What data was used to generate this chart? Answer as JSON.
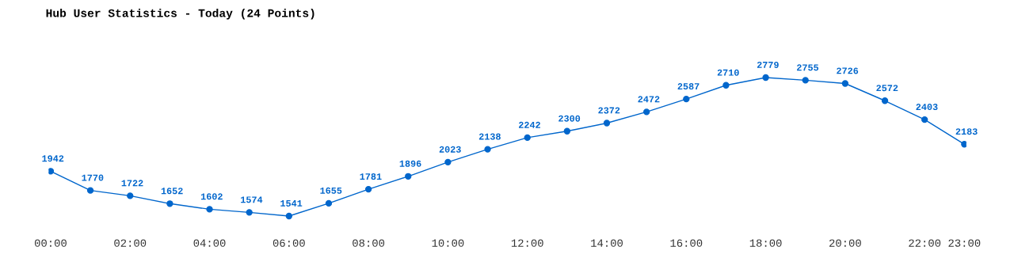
{
  "chart_data": {
    "type": "line",
    "title": "Hub User Statistics - Today (24 Points)",
    "categories": [
      "00:00",
      null,
      "02:00",
      null,
      "04:00",
      null,
      "06:00",
      null,
      "08:00",
      null,
      "10:00",
      null,
      "12:00",
      null,
      "14:00",
      null,
      "16:00",
      null,
      "18:00",
      null,
      "20:00",
      null,
      "22:00",
      "23:00"
    ],
    "series": [
      {
        "color": "#0066cc",
        "values": [
          1942,
          1770,
          1722,
          1652,
          1602,
          1574,
          1541,
          1655,
          1781,
          1896,
          2023,
          2138,
          2242,
          2300,
          2372,
          2472,
          2587,
          2710,
          2779,
          2755,
          2726,
          2572,
          2403,
          2183
        ]
      }
    ],
    "data_labels": true,
    "marker": "circle",
    "line_style": "solid",
    "grid": false,
    "legend": false,
    "tick_labels": "x"
  }
}
